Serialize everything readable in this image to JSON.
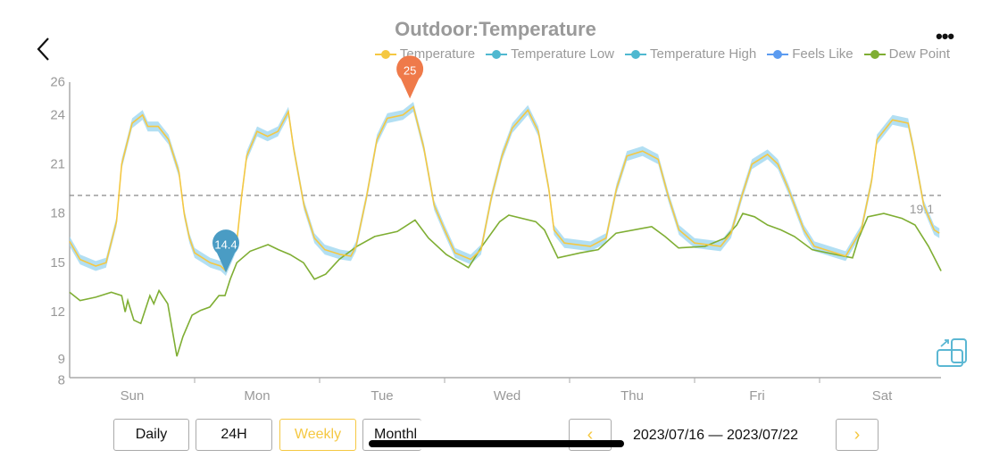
{
  "header": {
    "title": "Outdoor:Temperature",
    "back_icon": "chevron-left-icon",
    "more_icon": "ellipsis-icon",
    "more_label": "•••"
  },
  "legend": [
    {
      "label": "Temperature",
      "color": "#f5c842"
    },
    {
      "label": "Temperature Low",
      "color": "#4fb8d0"
    },
    {
      "label": "Temperature High",
      "color": "#4fb8d0"
    },
    {
      "label": "Feels Like",
      "color": "#5b9bf0"
    },
    {
      "label": "Dew Point",
      "color": "#7fae33"
    }
  ],
  "controls": {
    "tabs": [
      {
        "label": "Daily",
        "active": false
      },
      {
        "label": "24H",
        "active": false
      },
      {
        "label": "Weekly",
        "active": true
      },
      {
        "label": "Monthl",
        "active": false
      }
    ],
    "prev_label": "‹",
    "next_label": "›",
    "date_range": "2023/07/16 — 2023/07/22",
    "rotate_icon": "screen-rotate-icon"
  },
  "chart_data": {
    "type": "line",
    "title": "Outdoor:Temperature",
    "x_range": [
      "07/16 00:00",
      "07/23 00:00"
    ],
    "ylim": [
      8,
      26
    ],
    "yticks": [
      26,
      24,
      21,
      18,
      15,
      12,
      9,
      8
    ],
    "xticks": [
      "Sun",
      "Mon",
      "Tue",
      "Wed",
      "Thu",
      "Fri",
      "Sat"
    ],
    "grid": false,
    "legend_position": "top-right",
    "average": {
      "value": 19.1,
      "label": "19.1"
    },
    "max_marker": {
      "x": "07/18 17:20",
      "value": 25,
      "label": "25",
      "color": "#ef7a4a"
    },
    "min_marker": {
      "x": "07/17 06:00",
      "value": 14.4,
      "label": "14.4",
      "color": "#4a9cc4"
    },
    "series": [
      {
        "name": "Temperature",
        "color": "#f5c842",
        "points": [
          [
            "07/16 00:00",
            16.3
          ],
          [
            "07/16 02:00",
            15.2
          ],
          [
            "07/16 05:00",
            14.8
          ],
          [
            "07/16 07:00",
            15.0
          ],
          [
            "07/16 09:00",
            17.5
          ],
          [
            "07/16 10:00",
            21
          ],
          [
            "07/16 12:00",
            23.5
          ],
          [
            "07/16 14:00",
            24
          ],
          [
            "07/16 15:00",
            23.3
          ],
          [
            "07/16 17:00",
            23.3
          ],
          [
            "07/16 19:00",
            22.5
          ],
          [
            "07/16 21:00",
            20.5
          ],
          [
            "07/16 22:00",
            18
          ],
          [
            "07/16 23:00",
            16.5
          ],
          [
            "07/17 00:00",
            15.6
          ],
          [
            "07/17 03:00",
            15
          ],
          [
            "07/17 05:00",
            14.8
          ],
          [
            "07/17 06:00",
            14.5
          ],
          [
            "07/17 08:00",
            16
          ],
          [
            "07/17 09:00",
            19
          ],
          [
            "07/17 10:00",
            21.5
          ],
          [
            "07/17 12:00",
            23
          ],
          [
            "07/17 14:00",
            22.7
          ],
          [
            "07/17 16:00",
            23
          ],
          [
            "07/17 18:00",
            24.2
          ],
          [
            "07/17 19:00",
            22
          ],
          [
            "07/17 21:00",
            18.5
          ],
          [
            "07/17 23:00",
            16.5
          ],
          [
            "07/18 01:00",
            15.8
          ],
          [
            "07/18 04:00",
            15.5
          ],
          [
            "07/18 06:00",
            15.4
          ],
          [
            "07/18 07:00",
            16
          ],
          [
            "07/18 09:00",
            19
          ],
          [
            "07/18 11:00",
            22.5
          ],
          [
            "07/18 13:00",
            23.8
          ],
          [
            "07/18 16:00",
            24
          ],
          [
            "07/18 18:00",
            24.5
          ],
          [
            "07/18 20:00",
            22
          ],
          [
            "07/18 22:00",
            18.5
          ],
          [
            "07/19 00:00",
            17
          ],
          [
            "07/19 02:00",
            15.6
          ],
          [
            "07/19 05:00",
            15.2
          ],
          [
            "07/19 07:00",
            15.8
          ],
          [
            "07/19 09:00",
            19
          ],
          [
            "07/19 11:00",
            21.5
          ],
          [
            "07/19 13:00",
            23.2
          ],
          [
            "07/19 16:00",
            24.3
          ],
          [
            "07/19 18:00",
            23
          ],
          [
            "07/19 20:00",
            19.5
          ],
          [
            "07/19 21:00",
            17
          ],
          [
            "07/19 23:00",
            16.2
          ],
          [
            "07/20 04:00",
            16
          ],
          [
            "07/20 07:00",
            16.5
          ],
          [
            "07/20 09:00",
            19.5
          ],
          [
            "07/20 11:00",
            21.5
          ],
          [
            "07/20 14:00",
            21.8
          ],
          [
            "07/20 17:00",
            21.3
          ],
          [
            "07/20 19:00",
            19
          ],
          [
            "07/20 21:00",
            17
          ],
          [
            "07/21 00:00",
            16.2
          ],
          [
            "07/21 05:00",
            16
          ],
          [
            "07/21 07:00",
            16.8
          ],
          [
            "07/21 09:00",
            19
          ],
          [
            "07/21 11:00",
            21
          ],
          [
            "07/21 14:00",
            21.6
          ],
          [
            "07/21 16:00",
            21
          ],
          [
            "07/21 18:00",
            19.5
          ],
          [
            "07/21 21:00",
            17
          ],
          [
            "07/21 23:00",
            16
          ],
          [
            "07/22 02:00",
            15.7
          ],
          [
            "07/22 05:00",
            15.4
          ],
          [
            "07/22 08:00",
            17
          ],
          [
            "07/22 10:00",
            20
          ],
          [
            "07/22 11:00",
            22.5
          ],
          [
            "07/22 14:00",
            23.7
          ],
          [
            "07/22 17:00",
            23.5
          ],
          [
            "07/22 18:00",
            22
          ],
          [
            "07/22 20:00",
            18.5
          ],
          [
            "07/22 22:00",
            17
          ],
          [
            "07/22 23:00",
            16.8
          ]
        ]
      },
      {
        "name": "Dew Point",
        "color": "#7fae33",
        "points": [
          [
            "07/16 00:00",
            13.2
          ],
          [
            "07/16 02:00",
            12.7
          ],
          [
            "07/16 05:00",
            12.9
          ],
          [
            "07/16 08:00",
            13.2
          ],
          [
            "07/16 10:00",
            13
          ],
          [
            "07/16 10:40",
            12
          ],
          [
            "07/16 11:10",
            12.7
          ],
          [
            "07/16 12:20",
            11.5
          ],
          [
            "07/16 13:40",
            11.3
          ],
          [
            "07/16 15:25",
            13
          ],
          [
            "07/16 16:10",
            12.5
          ],
          [
            "07/16 17:10",
            13.3
          ],
          [
            "07/16 18:50",
            12.5
          ],
          [
            "07/16 20:35",
            9.3
          ],
          [
            "07/16 21:45",
            10.5
          ],
          [
            "07/16 23:30",
            11.8
          ],
          [
            "07/17 01:10",
            12.1
          ],
          [
            "07/17 02:55",
            12.3
          ],
          [
            "07/17 04:40",
            13
          ],
          [
            "07/17 05:50",
            13
          ],
          [
            "07/17 06:50",
            14
          ],
          [
            "07/17 08:05",
            15
          ],
          [
            "07/17 10:40",
            15.7
          ],
          [
            "07/17 14:05",
            16.1
          ],
          [
            "07/17 16:05",
            15.8
          ],
          [
            "07/17 18:20",
            15.5
          ],
          [
            "07/17 20:55",
            15
          ],
          [
            "07/17 23:00",
            14
          ],
          [
            "07/18 01:10",
            14.3
          ],
          [
            "07/18 03:45",
            15.2
          ],
          [
            "07/18 07:10",
            16
          ],
          [
            "07/18 10:35",
            16.6
          ],
          [
            "07/18 14:55",
            16.9
          ],
          [
            "07/18 18:20",
            17.6
          ],
          [
            "07/18 20:55",
            16.5
          ],
          [
            "07/19 00:20",
            15.5
          ],
          [
            "07/19 04:35",
            14.7
          ],
          [
            "07/19 07:10",
            16
          ],
          [
            "07/19 10:35",
            17.5
          ],
          [
            "07/19 12:20",
            17.9
          ],
          [
            "07/19 17:30",
            17.5
          ],
          [
            "07/19 19:10",
            17
          ],
          [
            "07/19 21:45",
            15.3
          ],
          [
            "07/20 02:05",
            15.6
          ],
          [
            "07/20 05:30",
            15.8
          ],
          [
            "07/20 08:55",
            16.8
          ],
          [
            "07/20 15:45",
            17.2
          ],
          [
            "07/20 18:20",
            16.6
          ],
          [
            "07/20 20:55",
            15.9
          ],
          [
            "07/21 02:00",
            16
          ],
          [
            "07/21 05:50",
            16.5
          ],
          [
            "07/21 08:05",
            17.3
          ],
          [
            "07/21 09:15",
            18
          ],
          [
            "07/21 11:30",
            17.8
          ],
          [
            "07/21 14:00",
            17.3
          ],
          [
            "07/21 16:35",
            17
          ],
          [
            "07/21 19:10",
            16.6
          ],
          [
            "07/21 22:35",
            15.8
          ],
          [
            "07/22 04:35",
            15.4
          ],
          [
            "07/22 06:20",
            15.3
          ],
          [
            "07/22 07:30",
            16.5
          ],
          [
            "07/22 09:15",
            17.8
          ],
          [
            "07/22 12:20",
            18
          ],
          [
            "07/22 15:50",
            17.7
          ],
          [
            "07/22 18:20",
            17.3
          ],
          [
            "07/22 20:55",
            16
          ],
          [
            "07/22 23:20",
            14.5
          ]
        ]
      }
    ]
  }
}
